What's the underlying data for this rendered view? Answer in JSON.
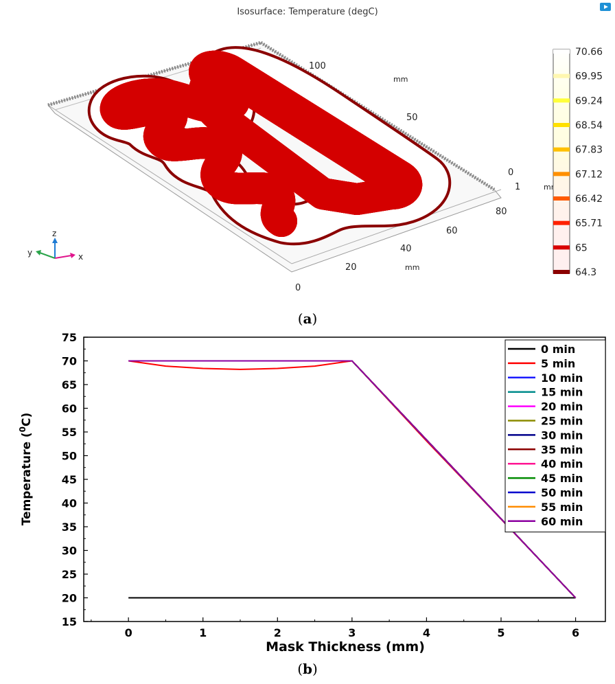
{
  "panel_a": {
    "title": "Isosurface: Temperature (degC)",
    "label_prefix": "(",
    "label_letter": "a",
    "label_suffix": ")",
    "axis_labels": {
      "y_ticks": [
        "100",
        "50",
        "0"
      ],
      "y_unit": "mm",
      "z_ticks": [
        "1"
      ],
      "z_unit": "mm",
      "x_ticks": [
        "0",
        "20",
        "40",
        "60",
        "80"
      ],
      "x_unit": "mm"
    },
    "triad": {
      "x": "x",
      "y": "y",
      "z": "z"
    },
    "colorbar": {
      "labels": [
        "70.66",
        "69.95",
        "69.24",
        "68.54",
        "67.83",
        "67.12",
        "66.42",
        "65.71",
        "65",
        "64.3"
      ],
      "colors": [
        "#ffffff",
        "#fff7b0",
        "#ffff3a",
        "#ffe000",
        "#ffc000",
        "#ff9000",
        "#ff5a00",
        "#ff2000",
        "#d80000",
        "#8b0000"
      ]
    }
  },
  "panel_b": {
    "label_prefix": "(",
    "label_letter": "b",
    "label_suffix": ")"
  },
  "chart_data": {
    "type": "line",
    "xlabel": "Mask Thickness (mm)",
    "ylabel_main": "Temperature (",
    "ylabel_sup": "0",
    "ylabel_end": "C)",
    "xlim": [
      -0.6,
      6.4
    ],
    "ylim": [
      15,
      75
    ],
    "x_ticks": [
      0,
      1,
      2,
      3,
      4,
      5,
      6
    ],
    "y_ticks": [
      15,
      20,
      25,
      30,
      35,
      40,
      45,
      50,
      55,
      60,
      65,
      70,
      75
    ],
    "legend_position": "top-right",
    "series": [
      {
        "name": "0 min",
        "color": "#000000",
        "x": [
          0,
          6
        ],
        "y": [
          20,
          20
        ]
      },
      {
        "name": "5 min",
        "color": "#ff0000",
        "x": [
          0,
          0.5,
          1,
          1.5,
          2,
          2.5,
          3,
          4,
          5,
          6
        ],
        "y": [
          70,
          68.9,
          68.4,
          68.2,
          68.4,
          68.9,
          70,
          53.1,
          36.6,
          20
        ]
      },
      {
        "name": "10 min",
        "color": "#1a1aff",
        "x": [
          0,
          3,
          6
        ],
        "y": [
          70,
          70,
          20
        ]
      },
      {
        "name": "15 min",
        "color": "#008b8b",
        "x": [
          0,
          3,
          6
        ],
        "y": [
          70,
          70,
          20
        ]
      },
      {
        "name": "20 min",
        "color": "#ff00ff",
        "x": [
          0,
          3,
          6
        ],
        "y": [
          70,
          70,
          20
        ]
      },
      {
        "name": "25 min",
        "color": "#8b8b00",
        "x": [
          0,
          3,
          6
        ],
        "y": [
          70,
          70,
          20
        ]
      },
      {
        "name": "30 min",
        "color": "#00008b",
        "x": [
          0,
          3,
          6
        ],
        "y": [
          70,
          70,
          20
        ]
      },
      {
        "name": "35 min",
        "color": "#8b0000",
        "x": [
          0,
          3,
          6
        ],
        "y": [
          70,
          70,
          20
        ]
      },
      {
        "name": "40 min",
        "color": "#ff1493",
        "x": [
          0,
          3,
          6
        ],
        "y": [
          70,
          70,
          20
        ]
      },
      {
        "name": "45 min",
        "color": "#008b00",
        "x": [
          0,
          3,
          6
        ],
        "y": [
          70,
          70,
          20
        ]
      },
      {
        "name": "50 min",
        "color": "#0000cd",
        "x": [
          0,
          3,
          6
        ],
        "y": [
          70,
          70,
          20
        ]
      },
      {
        "name": "55 min",
        "color": "#ff8c00",
        "x": [
          0,
          3,
          6
        ],
        "y": [
          70,
          70,
          20
        ]
      },
      {
        "name": "60 min",
        "color": "#8b00a0",
        "x": [
          0,
          3,
          6
        ],
        "y": [
          70,
          70,
          20
        ]
      }
    ]
  }
}
